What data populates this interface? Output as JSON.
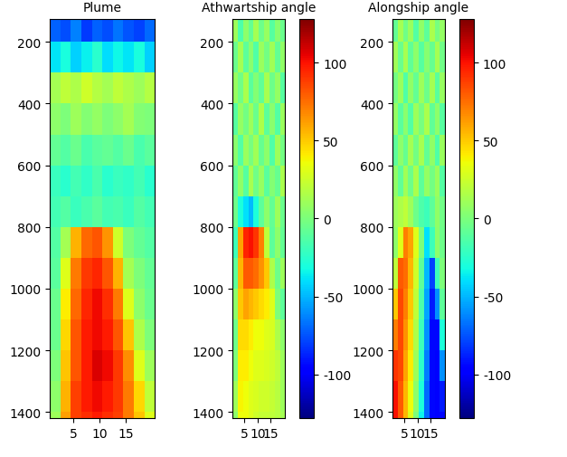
{
  "chart_data": [
    {
      "type": "heatmap",
      "title": "Plume",
      "xlim": [
        0.5,
        20.5
      ],
      "xticks": [
        5,
        10,
        15
      ],
      "ylim": [
        1420,
        125
      ],
      "yticks": [
        200,
        400,
        600,
        800,
        1000,
        1200,
        1400
      ],
      "x_edges": [
        0.5,
        2.5,
        4.5,
        6.5,
        8.5,
        10.5,
        12.5,
        14.5,
        16.5,
        18.5,
        20.5
      ],
      "y_edges": [
        125,
        200,
        300,
        400,
        500,
        600,
        700,
        800,
        900,
        1000,
        1100,
        1200,
        1300,
        1400,
        1420
      ],
      "clim": [
        0,
        100
      ],
      "cells": [
        [
          22,
          20,
          25,
          18,
          22,
          20,
          24,
          21,
          19,
          23
        ],
        [
          35,
          38,
          33,
          36,
          40,
          34,
          37,
          35,
          38,
          33
        ],
        [
          55,
          58,
          56,
          60,
          57,
          55,
          58,
          56,
          54,
          57
        ],
        [
          52,
          50,
          54,
          51,
          53,
          50,
          52,
          55,
          51,
          50
        ],
        [
          47,
          45,
          48,
          44,
          46,
          47,
          45,
          48,
          44,
          46
        ],
        [
          42,
          40,
          43,
          41,
          44,
          40,
          42,
          41,
          43,
          40
        ],
        [
          43,
          45,
          42,
          44,
          46,
          43,
          44,
          42,
          45,
          43
        ],
        [
          45,
          55,
          72,
          80,
          82,
          75,
          60,
          50,
          47,
          45
        ],
        [
          46,
          62,
          78,
          85,
          87,
          82,
          72,
          55,
          50,
          47
        ],
        [
          48,
          66,
          80,
          87,
          90,
          86,
          78,
          62,
          52,
          48
        ],
        [
          48,
          68,
          82,
          88,
          90,
          88,
          82,
          70,
          56,
          50
        ],
        [
          50,
          70,
          82,
          88,
          92,
          90,
          85,
          76,
          62,
          54
        ],
        [
          52,
          72,
          84,
          88,
          90,
          88,
          85,
          78,
          68,
          58
        ],
        [
          54,
          74,
          84,
          86,
          88,
          86,
          84,
          78,
          70,
          62
        ]
      ]
    },
    {
      "type": "heatmap",
      "title": "Athwartship angle",
      "xlim": [
        0.5,
        20.5
      ],
      "xticks": [
        5,
        10,
        15
      ],
      "ylim": [
        1420,
        125
      ],
      "yticks": [
        200,
        400,
        600,
        800,
        1000,
        1200,
        1400
      ],
      "x_edges": [
        0.5,
        2.5,
        4.5,
        6.5,
        8.5,
        10.5,
        12.5,
        14.5,
        16.5,
        18.5,
        20.5
      ],
      "y_edges": [
        125,
        200,
        300,
        400,
        500,
        600,
        700,
        800,
        900,
        1000,
        1100,
        1200,
        1300,
        1400,
        1420
      ],
      "clim": [
        -128,
        128
      ],
      "cticks": [
        -100,
        -50,
        0,
        50,
        100
      ],
      "cells": [
        [
          10,
          -15,
          5,
          -8,
          12,
          -5,
          8,
          -12,
          3,
          -6
        ],
        [
          -6,
          12,
          -10,
          4,
          -14,
          9,
          -3,
          11,
          -8,
          6
        ],
        [
          8,
          -4,
          14,
          -11,
          2,
          -9,
          13,
          -5,
          7,
          -12
        ],
        [
          -12,
          7,
          -3,
          10,
          -6,
          15,
          -10,
          4,
          -13,
          9
        ],
        [
          4,
          -13,
          9,
          -2,
          11,
          -7,
          5,
          -14,
          10,
          -3
        ],
        [
          -9,
          6,
          -12,
          13,
          -4,
          8,
          -11,
          2,
          -7,
          14
        ],
        [
          -5,
          -30,
          -40,
          -50,
          -30,
          -10,
          5,
          -8,
          10,
          -6
        ],
        [
          -20,
          60,
          95,
          100,
          90,
          70,
          20,
          -10,
          5,
          -8
        ],
        [
          -10,
          55,
          80,
          80,
          75,
          65,
          50,
          15,
          -5,
          10
        ],
        [
          5,
          50,
          60,
          55,
          50,
          45,
          40,
          30,
          0,
          -10
        ],
        [
          -5,
          45,
          45,
          40,
          35,
          35,
          30,
          28,
          15,
          5
        ],
        [
          0,
          40,
          40,
          35,
          30,
          30,
          28,
          25,
          20,
          10
        ],
        [
          10,
          38,
          35,
          30,
          28,
          25,
          25,
          22,
          18,
          10
        ],
        [
          5,
          35,
          35,
          30,
          25,
          22,
          22,
          20,
          18,
          12
        ]
      ]
    },
    {
      "type": "heatmap",
      "title": "Alongship angle",
      "xlim": [
        0.5,
        20.5
      ],
      "xticks": [
        5,
        10,
        15
      ],
      "ylim": [
        1420,
        125
      ],
      "yticks": [
        200,
        400,
        600,
        800,
        1000,
        1200,
        1400
      ],
      "x_edges": [
        0.5,
        2.5,
        4.5,
        6.5,
        8.5,
        10.5,
        12.5,
        14.5,
        16.5,
        18.5,
        20.5
      ],
      "y_edges": [
        125,
        200,
        300,
        400,
        500,
        600,
        700,
        800,
        900,
        1000,
        1100,
        1200,
        1300,
        1400,
        1420
      ],
      "clim": [
        -128,
        128
      ],
      "cticks": [
        -100,
        -50,
        0,
        50,
        100
      ],
      "cells": [
        [
          -8,
          12,
          -4,
          9,
          -13,
          6,
          -10,
          14,
          -2,
          7
        ],
        [
          11,
          -6,
          13,
          -9,
          5,
          -12,
          3,
          -7,
          12,
          -4
        ],
        [
          -3,
          9,
          -14,
          6,
          -8,
          10,
          -5,
          12,
          -11,
          8
        ],
        [
          7,
          -11,
          4,
          -13,
          10,
          -2,
          14,
          -9,
          5,
          -12
        ],
        [
          -10,
          5,
          -7,
          12,
          -3,
          13,
          -8,
          6,
          -14,
          9
        ],
        [
          6,
          -9,
          11,
          -5,
          14,
          -10,
          7,
          -3,
          9,
          -13
        ],
        [
          10,
          15,
          20,
          10,
          -5,
          -15,
          -20,
          -10,
          6,
          -4
        ],
        [
          5,
          30,
          70,
          60,
          30,
          0,
          -40,
          -20,
          5,
          -5
        ],
        [
          20,
          80,
          75,
          55,
          25,
          -10,
          -50,
          -80,
          -20,
          0
        ],
        [
          50,
          85,
          70,
          50,
          20,
          -15,
          -55,
          -90,
          -60,
          -10
        ],
        [
          70,
          85,
          65,
          45,
          15,
          -20,
          -60,
          -95,
          -95,
          -30
        ],
        [
          90,
          85,
          60,
          40,
          10,
          -25,
          -65,
          -95,
          -100,
          -60
        ],
        [
          100,
          80,
          55,
          35,
          5,
          -30,
          -70,
          -95,
          -100,
          -90
        ],
        [
          100,
          80,
          55,
          30,
          0,
          -35,
          -70,
          -95,
          -100,
          -95
        ]
      ]
    }
  ]
}
